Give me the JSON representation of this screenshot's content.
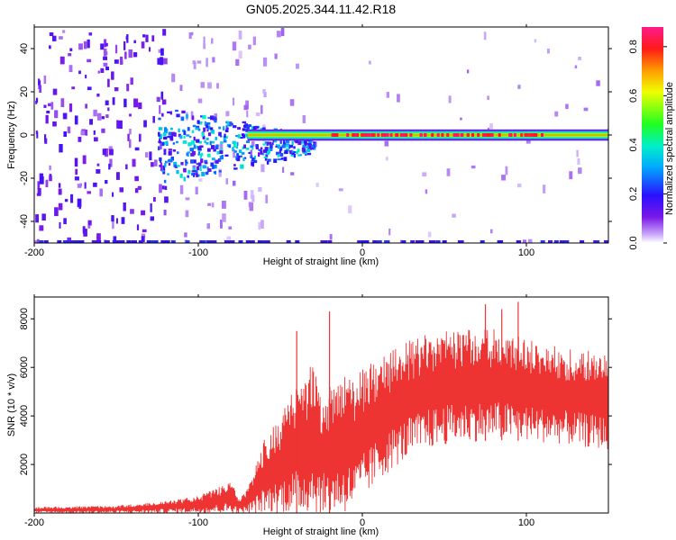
{
  "title": "GN05.2025.344.11.42.R18",
  "chart_data": [
    {
      "type": "heatmap",
      "xlabel": "Height of straight line (km)",
      "ylabel": "Frequency (Hz)",
      "xlim": [
        -200,
        150
      ],
      "ylim": [
        -50,
        50
      ],
      "x_ticks": [
        -200,
        -100,
        0,
        100
      ],
      "y_ticks": [
        -40,
        -20,
        0,
        20,
        40
      ],
      "colorbar": {
        "label": "Normalized spectral amplitude",
        "range": [
          0,
          0.88
        ],
        "ticks": [
          "0.0",
          "0.2",
          "0.4",
          "0.6",
          "0.8"
        ],
        "colormap": "rainbow (purple-blue-cyan-green-yellow-red-pink)"
      },
      "features": [
        {
          "name": "narrowband line at 0 Hz",
          "x_range": [
            -70,
            150
          ],
          "frequency": 0,
          "half_width_hz": 2.5,
          "peak_amplitude": 0.8
        },
        {
          "name": "broadband cluster",
          "x_range": [
            -125,
            -30
          ],
          "frequency_range": [
            -15,
            10
          ],
          "amplitude": 0.35
        },
        {
          "name": "diffuse low-amplitude noise",
          "x_range": [
            -200,
            -120
          ],
          "frequency_range": [
            -50,
            50
          ],
          "amplitude": 0.1
        }
      ],
      "grid": false
    },
    {
      "type": "line",
      "xlabel": "Height of straight line (km)",
      "ylabel": "SNR (10 * v/v)",
      "xlim": [
        -200,
        150
      ],
      "ylim": [
        0,
        8900
      ],
      "x_ticks": [
        -200,
        -100,
        0,
        100
      ],
      "y_ticks": [
        2000,
        4000,
        6000,
        8000
      ],
      "color": "#ee3333",
      "envelope": {
        "x": [
          -200,
          -150,
          -120,
          -100,
          -90,
          -80,
          -75,
          -70,
          -65,
          -60,
          -55,
          -50,
          -45,
          -40,
          -35,
          -30,
          -25,
          -20,
          -15,
          -10,
          -5,
          0,
          5,
          10,
          15,
          20,
          25,
          30,
          40,
          50,
          60,
          70,
          80,
          90,
          100,
          110,
          120,
          130,
          140,
          150
        ],
        "lower": [
          0,
          0,
          0,
          0,
          0,
          0,
          0,
          0,
          0,
          0,
          0,
          0,
          0,
          0,
          0,
          0,
          0,
          0,
          0,
          0,
          200,
          500,
          900,
          1300,
          1600,
          1900,
          2100,
          2300,
          2600,
          2800,
          2900,
          2950,
          3000,
          3000,
          2950,
          2900,
          2850,
          2750,
          2650,
          2600
        ],
        "upper": [
          250,
          300,
          500,
          700,
          1000,
          1300,
          600,
          1000,
          2000,
          3000,
          3500,
          4000,
          4800,
          5200,
          5600,
          6500,
          4500,
          5200,
          5500,
          5700,
          5600,
          6000,
          6200,
          6400,
          6600,
          6800,
          7000,
          7200,
          7400,
          7500,
          7600,
          7700,
          7600,
          7400,
          7200,
          7000,
          6900,
          6800,
          6700,
          6600
        ]
      },
      "spikes": [
        {
          "x": -40,
          "y": 7500
        },
        {
          "x": -20,
          "y": 8300
        },
        {
          "x": 75,
          "y": 8600
        },
        {
          "x": 85,
          "y": 8400
        },
        {
          "x": 95,
          "y": 8700
        }
      ],
      "grid": false
    }
  ]
}
